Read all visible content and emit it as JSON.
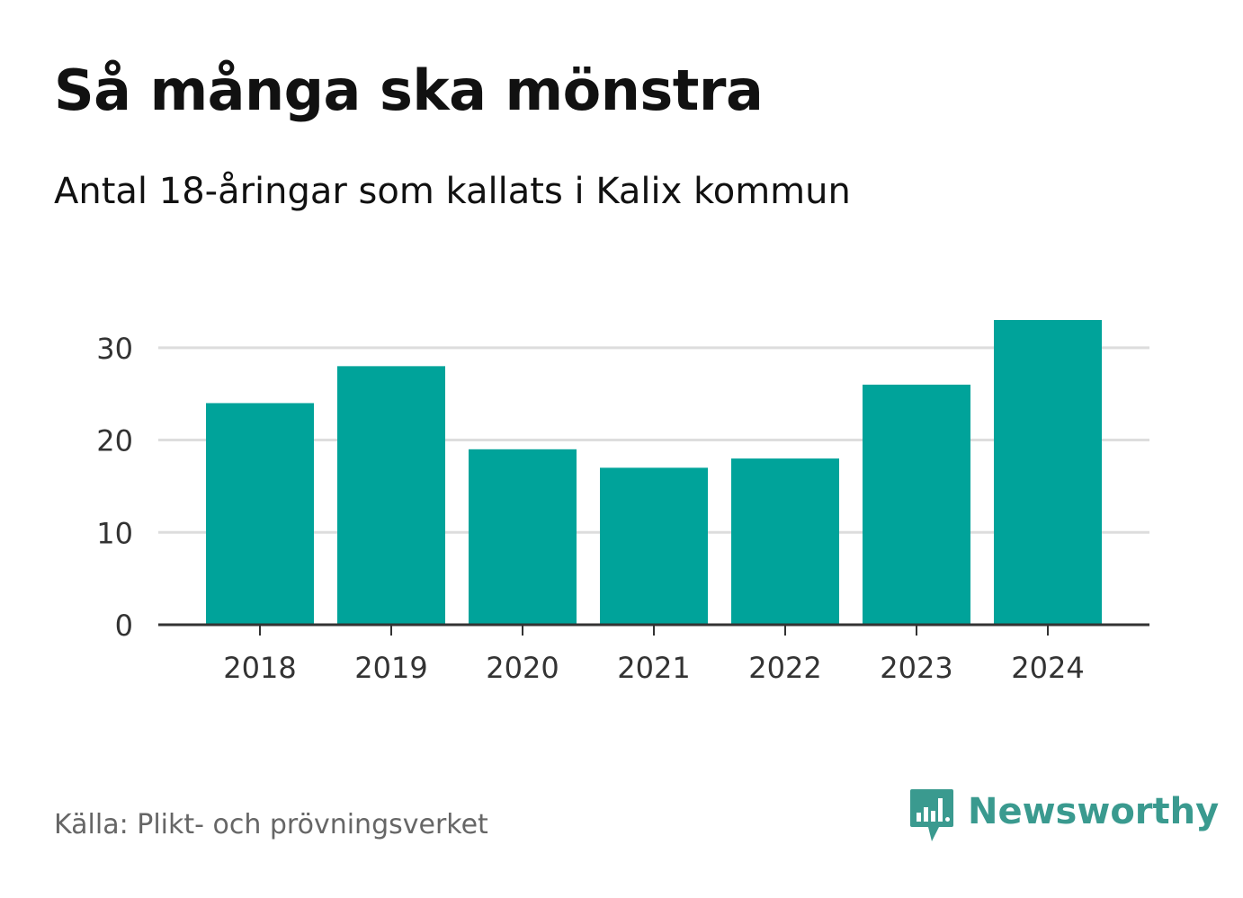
{
  "header": {
    "title": "Så många ska mönstra",
    "subtitle": "Antal 18-åringar som kallats i Kalix kommun"
  },
  "footer": {
    "source": "Källa: Plikt- och prövningsverket",
    "brand": "Newsworthy"
  },
  "colors": {
    "bar": "#00a39a",
    "grid": "#dddddd",
    "axis": "#333333",
    "brand": "#3a9a8f"
  },
  "icons": {
    "brand_logo": "bar-chart-speech-bubble-icon"
  },
  "chart_data": {
    "type": "bar",
    "title": "Så många ska mönstra",
    "subtitle": "Antal 18-åringar som kallats i Kalix kommun",
    "categories": [
      "2018",
      "2019",
      "2020",
      "2021",
      "2022",
      "2023",
      "2024"
    ],
    "values": [
      24,
      28,
      19,
      17,
      18,
      26,
      33
    ],
    "xlabel": "",
    "ylabel": "",
    "ylim": [
      0,
      33
    ],
    "yticks": [
      0,
      10,
      20,
      30
    ],
    "grid": true,
    "legend": "none"
  }
}
